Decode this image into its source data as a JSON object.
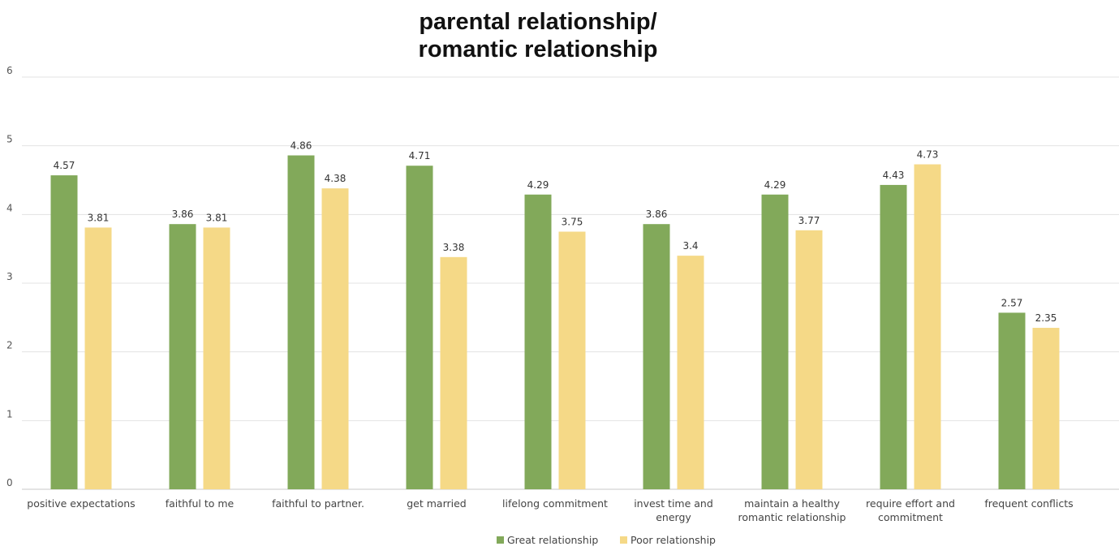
{
  "chart_data": {
    "type": "bar",
    "title_lines": [
      "parental relationship/",
      "romantic relationship"
    ],
    "categories": [
      [
        "positive expectations"
      ],
      [
        "faithful to me"
      ],
      [
        "faithful to partner."
      ],
      [
        "get married"
      ],
      [
        "lifelong commitment"
      ],
      [
        "invest time and",
        "energy"
      ],
      [
        "maintain a healthy",
        "romantic relationship"
      ],
      [
        "require effort and",
        "commitment"
      ],
      [
        "frequent conflicts"
      ]
    ],
    "series": [
      {
        "name": "Great relationship",
        "color": "#82a95a",
        "values": [
          4.57,
          3.86,
          4.86,
          4.71,
          4.29,
          3.86,
          4.29,
          4.43,
          2.57
        ]
      },
      {
        "name": "Poor relationship",
        "color": "#f5d987",
        "values": [
          3.81,
          3.81,
          4.38,
          3.38,
          3.75,
          3.4,
          3.77,
          4.73,
          2.35
        ]
      }
    ],
    "ylim": [
      0,
      6
    ],
    "yticks": [
      "0",
      "1",
      "2",
      "3",
      "4",
      "5",
      "6"
    ],
    "grid": true,
    "legend_position": "bottom"
  }
}
